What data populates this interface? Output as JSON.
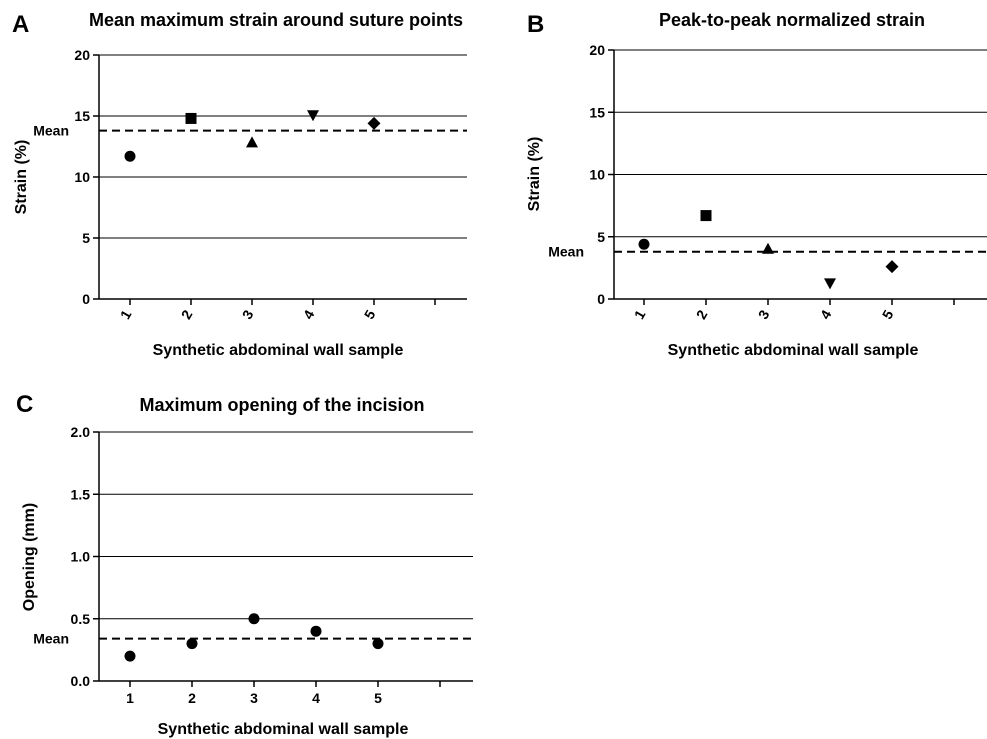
{
  "figure": {
    "panels": [
      "A",
      "B",
      "C"
    ]
  },
  "chart_data": [
    {
      "panel": "A",
      "type": "scatter",
      "title": "Mean maximum strain around suture points",
      "xlabel": "Synthetic abdominal wall sample",
      "ylabel": "Strain (%)",
      "categories": [
        "1",
        "2",
        "3",
        "4",
        "5"
      ],
      "x_tick_rotation": "rotated",
      "ylim": [
        0,
        20
      ],
      "yticks": [
        "0",
        "5",
        "10",
        "15",
        "20"
      ],
      "grid": "horizontal",
      "mean_label": "Mean",
      "mean_value": 13.8,
      "points": [
        {
          "x": "1",
          "y": 11.7,
          "marker": "circle"
        },
        {
          "x": "2",
          "y": 14.8,
          "marker": "square"
        },
        {
          "x": "3",
          "y": 12.8,
          "marker": "triangle-up"
        },
        {
          "x": "4",
          "y": 15.1,
          "marker": "triangle-down"
        },
        {
          "x": "5",
          "y": 14.4,
          "marker": "diamond"
        }
      ]
    },
    {
      "panel": "B",
      "type": "scatter",
      "title": "Peak-to-peak normalized strain",
      "xlabel": "Synthetic abdominal wall sample",
      "ylabel": "Strain (%)",
      "categories": [
        "1",
        "2",
        "3",
        "4",
        "5"
      ],
      "x_tick_rotation": "rotated",
      "ylim": [
        0,
        20
      ],
      "yticks": [
        "0",
        "5",
        "10",
        "15",
        "20"
      ],
      "grid": "horizontal",
      "mean_label": "Mean",
      "mean_value": 3.8,
      "points": [
        {
          "x": "1",
          "y": 4.4,
          "marker": "circle"
        },
        {
          "x": "2",
          "y": 6.7,
          "marker": "square"
        },
        {
          "x": "3",
          "y": 4.0,
          "marker": "triangle-up"
        },
        {
          "x": "4",
          "y": 1.3,
          "marker": "triangle-down"
        },
        {
          "x": "5",
          "y": 2.6,
          "marker": "diamond"
        }
      ]
    },
    {
      "panel": "C",
      "type": "scatter",
      "title": "Maximum opening of the incision",
      "xlabel": "Synthetic abdominal wall sample",
      "ylabel": "Opening (mm)",
      "categories": [
        "1",
        "2",
        "3",
        "4",
        "5"
      ],
      "x_tick_rotation": "none",
      "ylim": [
        0,
        2
      ],
      "yticks": [
        "0.0",
        "0.5",
        "1.0",
        "1.5",
        "2.0"
      ],
      "grid": "horizontal",
      "mean_label": "Mean",
      "mean_value": 0.34,
      "points": [
        {
          "x": "1",
          "y": 0.2,
          "marker": "circle"
        },
        {
          "x": "2",
          "y": 0.3,
          "marker": "circle"
        },
        {
          "x": "3",
          "y": 0.5,
          "marker": "circle"
        },
        {
          "x": "4",
          "y": 0.4,
          "marker": "circle"
        },
        {
          "x": "5",
          "y": 0.3,
          "marker": "circle"
        }
      ]
    }
  ]
}
